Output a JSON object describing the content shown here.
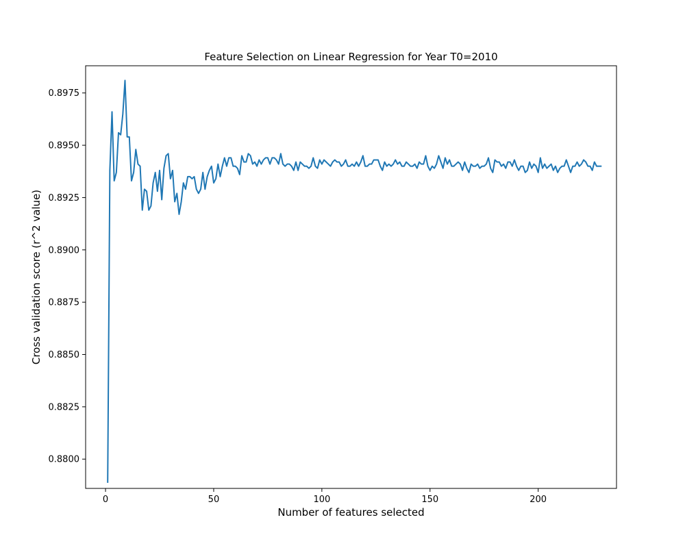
{
  "chart_data": {
    "type": "line",
    "title": "Feature Selection on Linear Regression for Year T0=2010",
    "xlabel": "Number of features selected",
    "ylabel": "Cross validation score (r^2 value)",
    "xlim": [
      -9.2,
      236.2
    ],
    "ylim": [
      0.8786,
      0.8988
    ],
    "x_ticks": [
      0,
      50,
      100,
      150,
      200
    ],
    "y_ticks": [
      0.88,
      0.8825,
      0.885,
      0.8875,
      0.89,
      0.8925,
      0.895,
      0.8975
    ],
    "x_tick_labels": [
      "0",
      "50",
      "100",
      "150",
      "200"
    ],
    "y_tick_labels": [
      "0.8800",
      "0.8825",
      "0.8850",
      "0.8875",
      "0.8900",
      "0.8925",
      "0.8950",
      "0.8975"
    ],
    "grid": false,
    "series": [
      {
        "color": "#1f77b4",
        "x_start": 1,
        "x_step": 1,
        "values": [
          0.8789,
          0.8938,
          0.8966,
          0.8933,
          0.8937,
          0.8956,
          0.8955,
          0.8965,
          0.8981,
          0.8954,
          0.8954,
          0.8933,
          0.8937,
          0.8948,
          0.8941,
          0.894,
          0.8919,
          0.8929,
          0.8928,
          0.8919,
          0.8921,
          0.8932,
          0.8937,
          0.8928,
          0.8938,
          0.8924,
          0.8939,
          0.8945,
          0.8946,
          0.8934,
          0.8938,
          0.8923,
          0.8927,
          0.8917,
          0.8923,
          0.8932,
          0.8929,
          0.8935,
          0.8935,
          0.8934,
          0.8935,
          0.8929,
          0.8927,
          0.8929,
          0.8937,
          0.8929,
          0.8935,
          0.8938,
          0.894,
          0.8932,
          0.8934,
          0.8941,
          0.8935,
          0.894,
          0.8944,
          0.894,
          0.8944,
          0.8944,
          0.894,
          0.894,
          0.8939,
          0.8936,
          0.8945,
          0.8942,
          0.8942,
          0.8946,
          0.8945,
          0.8941,
          0.8942,
          0.894,
          0.8943,
          0.8941,
          0.8943,
          0.8944,
          0.8944,
          0.8941,
          0.8944,
          0.8944,
          0.8943,
          0.8941,
          0.8946,
          0.8941,
          0.894,
          0.8941,
          0.8941,
          0.894,
          0.8938,
          0.8942,
          0.8938,
          0.8942,
          0.8941,
          0.894,
          0.894,
          0.8939,
          0.894,
          0.8944,
          0.894,
          0.8939,
          0.8943,
          0.8941,
          0.8943,
          0.8942,
          0.8941,
          0.894,
          0.8942,
          0.8943,
          0.8942,
          0.8942,
          0.894,
          0.8941,
          0.8943,
          0.894,
          0.894,
          0.8941,
          0.894,
          0.8942,
          0.894,
          0.8942,
          0.8945,
          0.894,
          0.894,
          0.8941,
          0.8941,
          0.8943,
          0.8943,
          0.8943,
          0.894,
          0.8938,
          0.8942,
          0.894,
          0.8941,
          0.894,
          0.8941,
          0.8943,
          0.8941,
          0.8942,
          0.894,
          0.894,
          0.8942,
          0.8941,
          0.894,
          0.894,
          0.8941,
          0.8939,
          0.8942,
          0.8941,
          0.8941,
          0.8945,
          0.894,
          0.8938,
          0.894,
          0.8939,
          0.8941,
          0.8945,
          0.8942,
          0.8939,
          0.8944,
          0.8941,
          0.8943,
          0.894,
          0.894,
          0.8941,
          0.8942,
          0.8941,
          0.8938,
          0.8942,
          0.8939,
          0.8937,
          0.8941,
          0.894,
          0.894,
          0.8941,
          0.8939,
          0.894,
          0.894,
          0.8941,
          0.8944,
          0.8939,
          0.8937,
          0.8943,
          0.8942,
          0.8942,
          0.894,
          0.8941,
          0.8939,
          0.8942,
          0.8942,
          0.894,
          0.8943,
          0.894,
          0.8938,
          0.894,
          0.894,
          0.8937,
          0.8938,
          0.8942,
          0.8939,
          0.8941,
          0.894,
          0.8937,
          0.8944,
          0.8939,
          0.8941,
          0.8939,
          0.894,
          0.8941,
          0.8938,
          0.894,
          0.8937,
          0.8939,
          0.894,
          0.894,
          0.8943,
          0.894,
          0.8937,
          0.894,
          0.894,
          0.8942,
          0.894,
          0.8941,
          0.8943,
          0.8942,
          0.894,
          0.894,
          0.8938,
          0.8942,
          0.894,
          0.894,
          0.894
        ]
      }
    ]
  }
}
